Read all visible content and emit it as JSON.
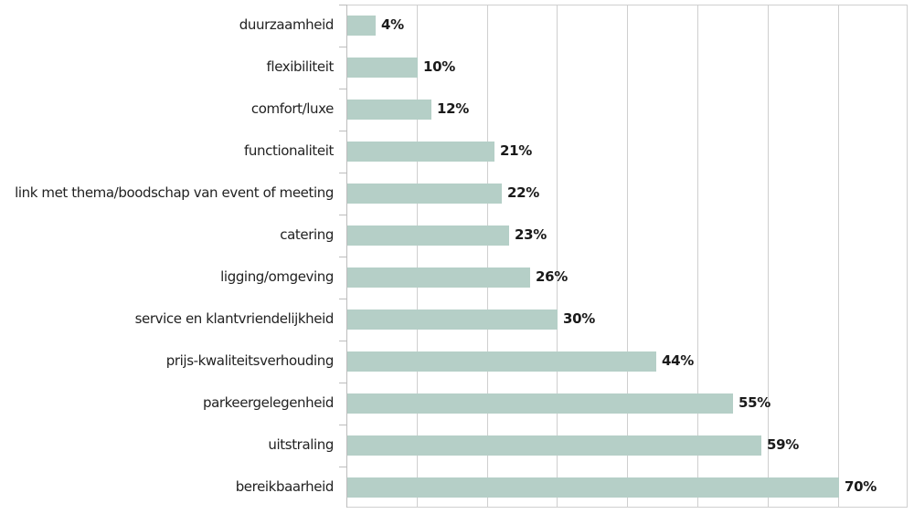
{
  "chart_data": {
    "type": "bar",
    "orientation": "horizontal",
    "title": "",
    "xlabel": "",
    "ylabel": "",
    "categories": [
      "duurzaamheid",
      "flexibiliteit",
      "comfort/luxe",
      "functionaliteit",
      "link met thema/boodschap van event of meeting",
      "catering",
      "ligging/omgeving",
      "service en klantvriendelijkheid",
      "prijs-kwaliteitsverhouding",
      "parkeergelegenheid",
      "uitstraling",
      "bereikbaarheid"
    ],
    "values": [
      4,
      10,
      12,
      21,
      22,
      23,
      26,
      30,
      44,
      55,
      59,
      70
    ],
    "value_labels": [
      "4%",
      "10%",
      "12%",
      "21%",
      "22%",
      "23%",
      "26%",
      "30%",
      "44%",
      "55%",
      "59%",
      "70%"
    ],
    "unit": "%",
    "xlim": [
      0,
      80
    ],
    "x_grid_step": 10,
    "grid": true,
    "x_tick_labels_visible": false,
    "legend": null,
    "bar_color": "#b5cfc7"
  }
}
